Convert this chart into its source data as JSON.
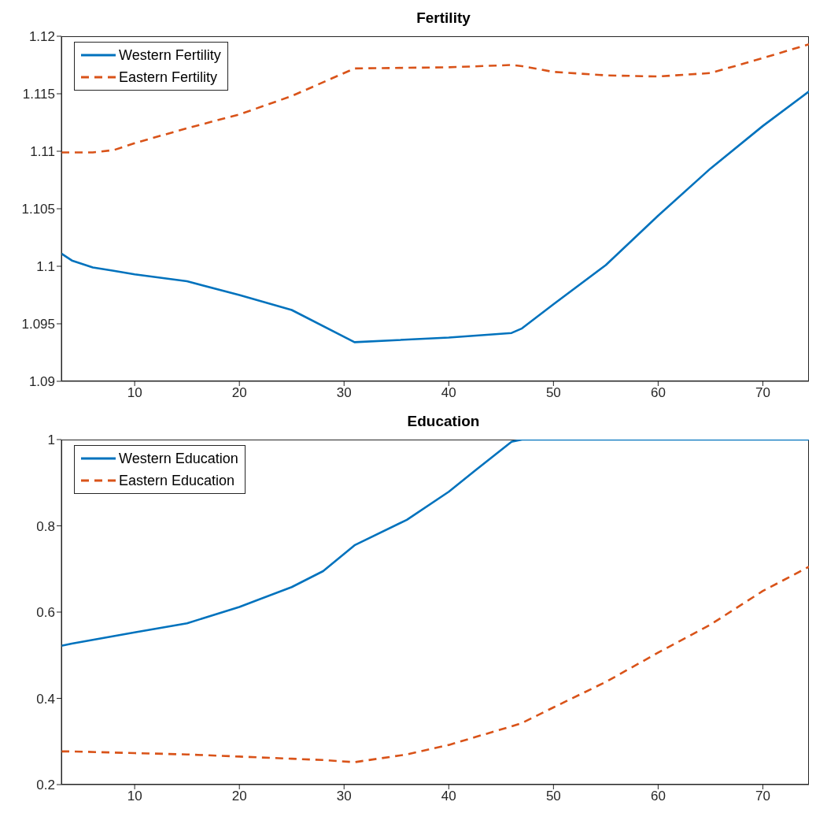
{
  "chart_data": [
    {
      "type": "line",
      "title": "Fertility",
      "x": [
        3,
        4,
        6,
        8,
        10,
        15,
        20,
        25,
        31,
        40,
        46,
        47,
        50,
        55,
        60,
        65,
        70,
        74.4
      ],
      "xlim": [
        3,
        74.4
      ],
      "xticks": [
        10,
        20,
        30,
        40,
        50,
        60,
        70
      ],
      "ylim": [
        1.09,
        1.12
      ],
      "yticks": [
        1.09,
        1.095,
        1.1,
        1.105,
        1.11,
        1.115,
        1.12
      ],
      "grid": false,
      "legend": "top left",
      "series": [
        {
          "name": "Western Fertility",
          "color": "#0072bd",
          "line_style": "solid",
          "values": [
            1.1011,
            1.1005,
            1.0999,
            1.0996,
            1.0993,
            1.0987,
            1.0975,
            1.0962,
            1.0934,
            1.0938,
            1.0942,
            1.0946,
            1.0967,
            1.1001,
            1.1044,
            1.1085,
            1.1122,
            1.1152
          ]
        },
        {
          "name": "Eastern Fertility",
          "color": "#d95319",
          "line_style": "dashed",
          "values": [
            1.1099,
            1.1099,
            1.1099,
            1.1101,
            1.1107,
            1.112,
            1.1132,
            1.1148,
            1.1172,
            1.1173,
            1.1175,
            1.1174,
            1.1169,
            1.1166,
            1.1165,
            1.1168,
            1.1181,
            1.1193
          ]
        }
      ]
    },
    {
      "type": "line",
      "title": "Education",
      "x": [
        3,
        4,
        10,
        15,
        20,
        25,
        28,
        31,
        36,
        40,
        42.5,
        46,
        47,
        50,
        55,
        60,
        65,
        70,
        74.4
      ],
      "xlim": [
        3,
        74.4
      ],
      "xticks": [
        10,
        20,
        30,
        40,
        50,
        60,
        70
      ],
      "ylim": [
        0.2,
        1
      ],
      "yticks": [
        0.2,
        0.4,
        0.6,
        0.8,
        1
      ],
      "grid": false,
      "legend": "top left",
      "series": [
        {
          "name": "Western Education",
          "color": "#0072bd",
          "line_style": "solid",
          "values": [
            0.522,
            0.527,
            0.553,
            0.574,
            0.612,
            0.658,
            0.695,
            0.755,
            0.814,
            0.879,
            0.928,
            0.995,
            1,
            1,
            1,
            1,
            1,
            1,
            1
          ]
        },
        {
          "name": "Eastern Education",
          "color": "#d95319",
          "line_style": "dashed",
          "values": [
            0.277,
            0.277,
            0.273,
            0.27,
            0.265,
            0.26,
            0.257,
            0.252,
            0.27,
            0.292,
            0.31,
            0.335,
            0.343,
            0.379,
            0.438,
            0.506,
            0.571,
            0.649,
            0.705
          ]
        }
      ]
    }
  ]
}
